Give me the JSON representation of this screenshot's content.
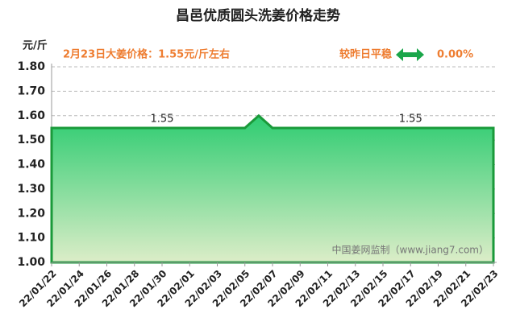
{
  "chart_data": {
    "type": "area",
    "title": "昌邑优质圆头洗姜价格走势",
    "y_unit": "元/斤",
    "annotation": "2月23日大姜价格：1.55元/斤左右",
    "change_text": "较昨日平稳",
    "change_value": "0.00%",
    "watermark": "中国姜网监制（www.jiang7.com）",
    "categories": [
      "22/01/22",
      null,
      "22/01/24",
      null,
      "22/01/26",
      null,
      "22/01/28",
      null,
      "22/01/30",
      null,
      "22/02/01",
      null,
      "22/02/03",
      null,
      "22/02/05",
      null,
      "22/02/07",
      null,
      "22/02/09",
      null,
      "22/02/11",
      null,
      "22/02/13",
      null,
      "22/02/15",
      null,
      "22/02/17",
      null,
      "22/02/19",
      null,
      "22/02/21",
      null,
      "22/02/23"
    ],
    "values": [
      1.55,
      1.55,
      1.55,
      1.55,
      1.55,
      1.55,
      1.55,
      1.55,
      1.55,
      1.55,
      1.55,
      1.55,
      1.55,
      1.55,
      1.55,
      1.6,
      1.55,
      1.55,
      1.55,
      1.55,
      1.55,
      1.55,
      1.55,
      1.55,
      1.55,
      1.55,
      1.55,
      1.55,
      1.55,
      1.55,
      1.55,
      1.55,
      1.55
    ],
    "color": "#2ecc71",
    "ylim": [
      1.0,
      1.8
    ],
    "yticks": [
      {
        "value": 1.0,
        "label": "1.00"
      },
      {
        "value": 1.1,
        "label": "1.10"
      },
      {
        "value": 1.2,
        "label": "1.20"
      },
      {
        "value": 1.3,
        "label": "1.30"
      },
      {
        "value": 1.4,
        "label": "1.40"
      },
      {
        "value": 1.5,
        "label": "1.50"
      },
      {
        "value": 1.6,
        "label": "1.60"
      },
      {
        "value": 1.7,
        "label": "1.70"
      },
      {
        "value": 1.8,
        "label": "1.80"
      }
    ],
    "grid": true
  }
}
